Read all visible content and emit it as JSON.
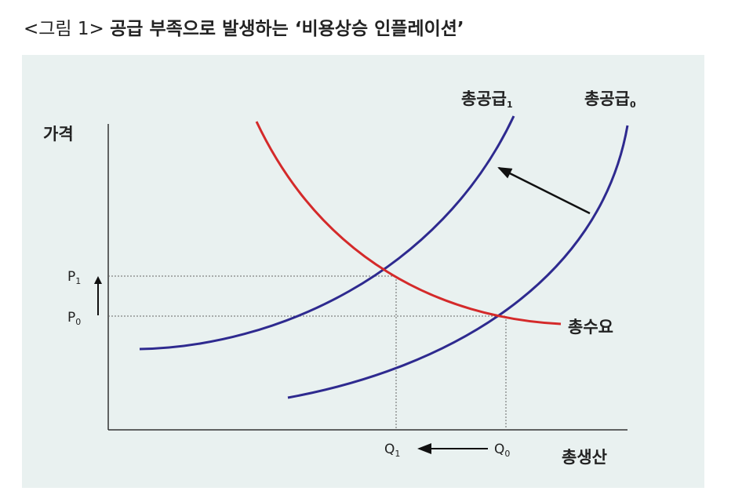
{
  "header": {
    "figure_label": "<그림 1>",
    "title": "공급 부족으로 발생하는 ‘비용상승 인플레이션’"
  },
  "diagram": {
    "y_axis_label": "가격",
    "x_axis_label": "총생산",
    "supply_1": {
      "text": "총공급",
      "sub": "1"
    },
    "supply_0": {
      "text": "총공급",
      "sub": "0"
    },
    "demand": "총수요",
    "p1": {
      "text": "P",
      "sub": "1"
    },
    "p0": {
      "text": "P",
      "sub": "0"
    },
    "q1": {
      "text": "Q",
      "sub": "1"
    },
    "q0": {
      "text": "Q",
      "sub": "0"
    }
  }
}
